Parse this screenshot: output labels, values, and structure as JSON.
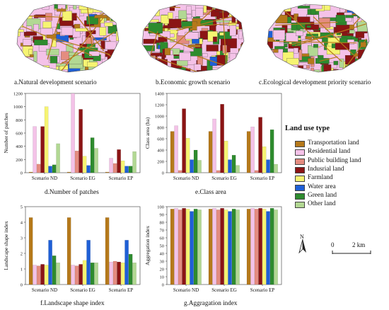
{
  "captions": {
    "a": "a.Natural development scenario",
    "b": "b.Economic growth scenario",
    "c": "c.Ecological development priority scenario",
    "d": "d.Number of patches",
    "e": "e.Class area",
    "f": "f.Landscape shape index",
    "g": "g.Aggragation index"
  },
  "legend": {
    "title": "Land use type",
    "items": [
      {
        "label": "Transportation land",
        "color": "#b5791b"
      },
      {
        "label": "Residential land",
        "color": "#f4c2e8"
      },
      {
        "label": "Public building land",
        "color": "#e48c80"
      },
      {
        "label": "Indusrial land",
        "color": "#8b1414"
      },
      {
        "label": "Farmland",
        "color": "#f6f472"
      },
      {
        "label": "Water area",
        "color": "#1e5fd6"
      },
      {
        "label": "Green land",
        "color": "#2e8b2e"
      },
      {
        "label": "Other land",
        "color": "#b2d893"
      }
    ]
  },
  "north": {
    "label": "N"
  },
  "scale": {
    "zero": "0",
    "distance": "2 km"
  },
  "chart_data": [
    {
      "id": "d",
      "type": "bar",
      "ylabel": "Number of patches",
      "ylim": [
        0,
        1200
      ],
      "yticks": [
        0,
        200,
        400,
        600,
        800,
        1000,
        1200
      ],
      "categories": [
        "Scenario ND",
        "Scenario EG",
        "Scenario EP"
      ],
      "series": [
        {
          "name": "Transportation land",
          "values": [
            10,
            10,
            10
          ]
        },
        {
          "name": "Residential land",
          "values": [
            700,
            1200,
            220
          ]
        },
        {
          "name": "Public building land",
          "values": [
            130,
            330,
            140
          ]
        },
        {
          "name": "Indusrial land",
          "values": [
            700,
            960,
            350
          ]
        },
        {
          "name": "Farmland",
          "values": [
            1000,
            250,
            180
          ]
        },
        {
          "name": "Water area",
          "values": [
            100,
            110,
            100
          ]
        },
        {
          "name": "Green land",
          "values": [
            120,
            530,
            100
          ]
        },
        {
          "name": "Other land",
          "values": [
            440,
            370,
            320
          ]
        }
      ]
    },
    {
      "id": "e",
      "type": "bar",
      "ylabel": "Class area (ha)",
      "ylim": [
        0,
        1400
      ],
      "yticks": [
        0,
        200,
        400,
        600,
        800,
        1000,
        1200,
        1400
      ],
      "categories": [
        "Scenario ND",
        "Scenario EG",
        "Scenario EP"
      ],
      "series": [
        {
          "name": "Transportation land",
          "values": [
            730,
            730,
            730
          ]
        },
        {
          "name": "Residential land",
          "values": [
            830,
            950,
            810
          ]
        },
        {
          "name": "Public building land",
          "values": [
            40,
            40,
            40
          ]
        },
        {
          "name": "Indusrial land",
          "values": [
            1130,
            1210,
            980
          ]
        },
        {
          "name": "Farmland",
          "values": [
            610,
            560,
            460
          ]
        },
        {
          "name": "Water area",
          "values": [
            230,
            230,
            230
          ]
        },
        {
          "name": "Green land",
          "values": [
            400,
            310,
            760
          ]
        },
        {
          "name": "Other land",
          "values": [
            220,
            130,
            150
          ]
        }
      ]
    },
    {
      "id": "f",
      "type": "bar",
      "ylabel": "Landscape shape index",
      "ylim": [
        0,
        5
      ],
      "yticks": [
        0,
        1,
        2,
        3,
        4,
        5
      ],
      "categories": [
        "Scenario ND",
        "Scenario EG",
        "Scenario EP"
      ],
      "series": [
        {
          "name": "Transportation land",
          "values": [
            4.3,
            4.3,
            4.3
          ]
        },
        {
          "name": "Residential land",
          "values": [
            1.25,
            1.25,
            1.45
          ]
        },
        {
          "name": "Public building land",
          "values": [
            1.2,
            1.2,
            1.5
          ]
        },
        {
          "name": "Indusrial land",
          "values": [
            1.3,
            1.3,
            1.45
          ]
        },
        {
          "name": "Farmland",
          "values": [
            1.25,
            1.55,
            1.4
          ]
        },
        {
          "name": "Water area",
          "values": [
            2.85,
            2.85,
            2.85
          ]
        },
        {
          "name": "Green land",
          "values": [
            1.85,
            1.4,
            1.95
          ]
        },
        {
          "name": "Other land",
          "values": [
            1.4,
            1.4,
            1.4
          ]
        }
      ]
    },
    {
      "id": "g",
      "type": "bar",
      "ylabel": "Aggregation index",
      "ylim": [
        0,
        100
      ],
      "yticks": [
        0,
        10,
        20,
        30,
        40,
        50,
        60,
        70,
        80,
        90,
        100
      ],
      "categories": [
        "Scenario ND",
        "Scenario EG",
        "Scenario EP"
      ],
      "series": [
        {
          "name": "Transportation land",
          "values": [
            97,
            97,
            97
          ]
        },
        {
          "name": "Residential land",
          "values": [
            98,
            98,
            98
          ]
        },
        {
          "name": "Public building land",
          "values": [
            96,
            96,
            97
          ]
        },
        {
          "name": "Indusrial land",
          "values": [
            98,
            98,
            98
          ]
        },
        {
          "name": "Farmland",
          "values": [
            97,
            96,
            97
          ]
        },
        {
          "name": "Water area",
          "values": [
            94,
            94,
            94
          ]
        },
        {
          "name": "Green land",
          "values": [
            97,
            97,
            98
          ]
        },
        {
          "name": "Other land",
          "values": [
            96,
            96,
            96
          ]
        }
      ]
    }
  ]
}
